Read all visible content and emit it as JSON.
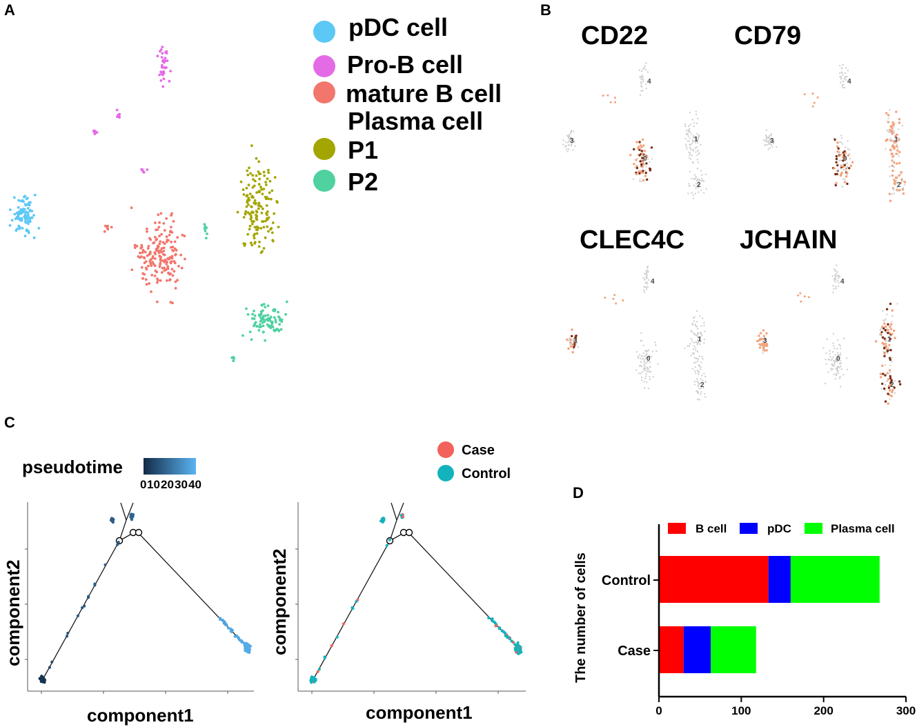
{
  "panels": {
    "a": {
      "letter": "A",
      "legend": [
        {
          "label": "pDC cell",
          "color": "#5bc8f5"
        },
        {
          "label": "Pro-B cell",
          "color": "#e46be6"
        },
        {
          "label": "mature B cell",
          "color": "#f2766c"
        },
        {
          "label": "Plasma cell",
          "color": null
        },
        {
          "label": "P1",
          "color": "#a3a500"
        },
        {
          "label": "P2",
          "color": "#4fd1a0"
        }
      ]
    },
    "b": {
      "letter": "B",
      "genes": [
        "CD22",
        "CD79",
        "CLEC4C",
        "JCHAIN"
      ],
      "cluster_labels": [
        "0",
        "1",
        "2",
        "3",
        "4"
      ]
    },
    "c": {
      "letter": "C",
      "pseudotime_title": "pseudotime",
      "pseudotime_ticks": [
        "0",
        "10",
        "20",
        "30",
        "40"
      ],
      "xlabel": "component1",
      "ylabel": "component2",
      "group_legend": [
        {
          "label": "Case",
          "color": "#f2615a"
        },
        {
          "label": "Control",
          "color": "#12b3bc"
        }
      ]
    },
    "d": {
      "letter": "D"
    }
  },
  "colors": {
    "grey_dot": "#cfcfcf",
    "expr_light": "#f4a078",
    "expr_dark": "#7a2a12",
    "pseudo_dark": "#16304e",
    "pseudo_light": "#58b0ee",
    "trajectory": "#1a1a1a"
  },
  "chart_data": [
    {
      "type": "bar",
      "orientation": "horizontal",
      "stacked": true,
      "categories": [
        "Control",
        "Case"
      ],
      "series": [
        {
          "name": "B cell",
          "color": "#ff0000",
          "values": [
            133,
            30
          ]
        },
        {
          "name": "pDC",
          "color": "#0000ff",
          "values": [
            27,
            33
          ]
        },
        {
          "name": "Plasma cell",
          "color": "#00ff00",
          "values": [
            108,
            55
          ]
        }
      ],
      "xlabel": "",
      "ylabel": "The number of cells",
      "xlim": [
        0,
        300
      ],
      "xticks": [
        0,
        100,
        200,
        300
      ],
      "legend_position": "top"
    }
  ]
}
